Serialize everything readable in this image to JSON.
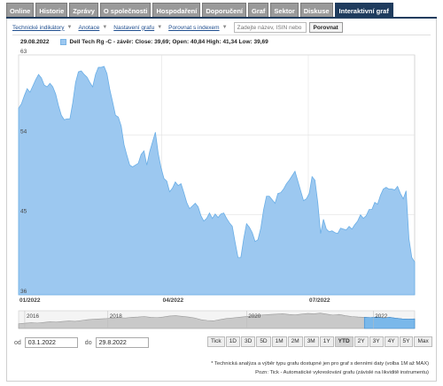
{
  "tabs": [
    {
      "label": "Online"
    },
    {
      "label": "Historie"
    },
    {
      "label": "Zprávy"
    },
    {
      "label": "O společnosti"
    },
    {
      "label": "Hospodaření"
    },
    {
      "label": "Doporučení"
    },
    {
      "label": "Graf"
    },
    {
      "label": "Sektor"
    },
    {
      "label": "Diskuse"
    },
    {
      "label": "Interaktivní graf",
      "active": true
    }
  ],
  "toolbar": {
    "links": [
      "Technické indikátory",
      "Anotace",
      "Nastavení grafu",
      "Porovnat s indexem"
    ],
    "search_placeholder": "Zadejte název, ISIN nebo",
    "compare_button": "Porovnat"
  },
  "chart_header": {
    "date": "29.08.2022",
    "legend": "Dell Tech Rg -C - závěr: Close: 39,69; Open: 40,84 High: 41,34 Low: 39,69",
    "series_color": "#9cc8f0"
  },
  "chart_data": {
    "type": "area",
    "yticks": [
      "63",
      "54",
      "45",
      "36"
    ],
    "ylim": [
      36,
      63
    ],
    "xticks": [
      "01/2022",
      "04/2022",
      "07/2022"
    ],
    "grid": true,
    "values": [
      57.0,
      57.5,
      58.4,
      59.2,
      58.8,
      59.5,
      60.2,
      60.8,
      60.4,
      59.6,
      59.4,
      59.8,
      59.4,
      58.6,
      57.3,
      56.2,
      55.7,
      55.8,
      55.8,
      57.6,
      59.9,
      61.1,
      61.2,
      60.8,
      60.5,
      59.9,
      59.4,
      60.8,
      61.6,
      61.6,
      61.7,
      60.9,
      59.1,
      57.7,
      56.2,
      56.0,
      55.0,
      52.9,
      51.7,
      50.6,
      50.4,
      50.6,
      50.8,
      51.8,
      52.2,
      50.6,
      52.1,
      53.2,
      54.3,
      51.9,
      50.3,
      49.1,
      48.8,
      47.6,
      48.0,
      48.7,
      48.3,
      48.5,
      47.5,
      46.4,
      45.7,
      46.0,
      46.3,
      45.9,
      44.9,
      44.3,
      44.6,
      45.2,
      44.6,
      45.1,
      44.7,
      45.1,
      45.2,
      44.6,
      44.1,
      43.7,
      41.9,
      40.2,
      40.2,
      42.3,
      44.0,
      43.6,
      43.0,
      42.0,
      42.2,
      43.5,
      45.6,
      47.1,
      47.1,
      46.7,
      46.3,
      47.4,
      47.5,
      47.9,
      48.5,
      48.9,
      49.4,
      49.9,
      48.8,
      47.7,
      46.6,
      46.8,
      47.4,
      49.3,
      48.9,
      46.4,
      42.9,
      44.5,
      43.4,
      43.1,
      43.2,
      43.0,
      42.9,
      43.5,
      43.4,
      43.3,
      43.7,
      43.4,
      43.9,
      44.3,
      45.0,
      44.6,
      44.9,
      45.6,
      45.6,
      46.4,
      46.2,
      47.2,
      47.9,
      48.1,
      47.9,
      47.9,
      47.8,
      48.2,
      47.4,
      46.8,
      47.7,
      42.3,
      40.2,
      39.7
    ],
    "navigator": {
      "labels": [
        "2016",
        "2018",
        "2020",
        "2022"
      ],
      "values": [
        0.3,
        0.33,
        0.36,
        0.34,
        0.38,
        0.42,
        0.4,
        0.44,
        0.47,
        0.45,
        0.5,
        0.55,
        0.58,
        0.6,
        0.62,
        0.65,
        0.68,
        0.66,
        0.7,
        0.72,
        0.75,
        0.7,
        0.68,
        0.72,
        0.78,
        0.8,
        0.76,
        0.72,
        0.66,
        0.55,
        0.5,
        0.48,
        0.55,
        0.62,
        0.66,
        0.7,
        0.74,
        0.78,
        0.82,
        0.85,
        0.88,
        0.9,
        0.92,
        0.88,
        0.85,
        0.9,
        0.94,
        0.92,
        0.96,
        0.9,
        0.84,
        0.88,
        0.8,
        0.75,
        0.72,
        0.7,
        0.68,
        0.72,
        0.66,
        0.7,
        0.64,
        0.6,
        0.58,
        0.6
      ]
    }
  },
  "range": {
    "from_label": "od",
    "from_value": "03.1.2022",
    "to_label": "do",
    "to_value": "29.8.2022",
    "buttons": [
      "Tick",
      "1D",
      "3D",
      "5D",
      "1M",
      "2M",
      "3M",
      "1Y",
      "YTD",
      "2Y",
      "3Y",
      "4Y",
      "5Y",
      "Max"
    ],
    "active": "YTD"
  },
  "footer": {
    "line1": "* Technická analýza a výběr typu grafu dostupné jen pro graf s denními daty (volba 1M až MAX)",
    "line2": "Pozn: Tick - Automatické vykreslování grafu (závislé na likviditě instrumentu)"
  }
}
